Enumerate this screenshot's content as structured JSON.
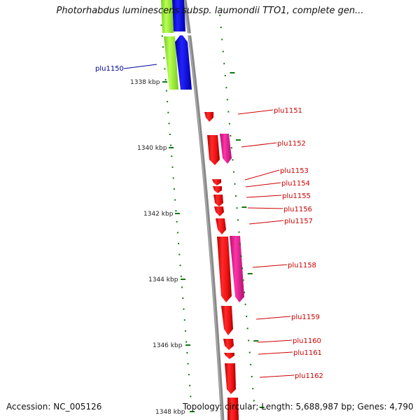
{
  "title": "Photorhabdus luminescens subsp. laumondii TTO1, complete gen...",
  "footer": {
    "accession_label": "Accession:",
    "accession": "NC_005126",
    "topology_label": "Topology:",
    "topology": "circular",
    "length_label": "Length:",
    "length": "5,688,987 bp",
    "genes_label": "Genes:",
    "genes": "4,790"
  },
  "colors": {
    "backbone": "#888888",
    "gene_forward": "#ee1111",
    "gene_highlight": "#ee2299",
    "neighbor_green": "#99ee33",
    "neighbor_blue": "#1111dd",
    "tick": "#117711",
    "label_red": "#cc0000",
    "label_blue": "#000099"
  },
  "axis_ticks": [
    "1338 kbp",
    "1340 kbp",
    "1342 kbp",
    "1344 kbp",
    "1346 kbp",
    "1348 kbp"
  ],
  "genes": [
    {
      "id": "plu1150",
      "color": "blue"
    },
    {
      "id": "plu1151",
      "color": "red"
    },
    {
      "id": "plu1152",
      "color": "red"
    },
    {
      "id": "plu1153",
      "color": "red"
    },
    {
      "id": "plu1154",
      "color": "red"
    },
    {
      "id": "plu1155",
      "color": "red"
    },
    {
      "id": "plu1156",
      "color": "red"
    },
    {
      "id": "plu1157",
      "color": "red"
    },
    {
      "id": "plu1158",
      "color": "red"
    },
    {
      "id": "plu1159",
      "color": "red"
    },
    {
      "id": "plu1160",
      "color": "red"
    },
    {
      "id": "plu1161",
      "color": "red"
    },
    {
      "id": "plu1162",
      "color": "red"
    }
  ]
}
